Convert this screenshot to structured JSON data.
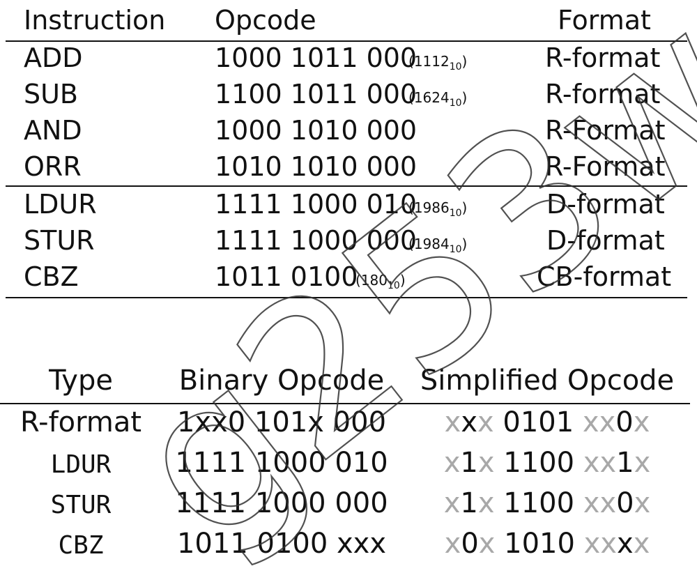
{
  "table1": {
    "headers": [
      "Instruction",
      "Opcode",
      "Format"
    ],
    "rows": [
      {
        "instruction": "ADD",
        "opcode": "1000 1011 000",
        "note": "1112",
        "note_sub": "10",
        "format": "R-format"
      },
      {
        "instruction": "SUB",
        "opcode": "1100 1011 000",
        "note": "1624",
        "note_sub": "10",
        "format": "R-format"
      },
      {
        "instruction": "AND",
        "opcode": "1000 1010 000",
        "note": "",
        "note_sub": "",
        "format": "R-Format"
      },
      {
        "instruction": "ORR",
        "opcode": "1010 1010 000",
        "note": "",
        "note_sub": "",
        "format": "R-Format"
      },
      {
        "instruction": "LDUR",
        "opcode": "1111 1000 010",
        "note": "1986",
        "note_sub": "10",
        "format": "D-format"
      },
      {
        "instruction": "STUR",
        "opcode": "1111 1000 000",
        "note": "1984",
        "note_sub": "10",
        "format": "D-format"
      },
      {
        "instruction": "CBZ",
        "opcode": "1011 0100",
        "note": "180",
        "note_sub": "10",
        "format": "CB-format"
      }
    ]
  },
  "table2": {
    "headers": [
      "Type",
      "Binary Opcode",
      "Simplified Opcode"
    ],
    "rows": [
      {
        "type": "R-format",
        "binary": "1xx0 101x 000",
        "simplified": [
          {
            "t": "x",
            "g": true
          },
          {
            "t": "x",
            "g": false
          },
          {
            "t": "x",
            "g": true
          },
          {
            "t": " 0101 ",
            "g": false
          },
          {
            "t": "xx",
            "g": true
          },
          {
            "t": "0",
            "g": false
          },
          {
            "t": "x",
            "g": true
          }
        ]
      },
      {
        "type": "LDUR",
        "binary": "1111 1000 010",
        "simplified": [
          {
            "t": "x",
            "g": true
          },
          {
            "t": "1",
            "g": false
          },
          {
            "t": "x",
            "g": true
          },
          {
            "t": " 1100 ",
            "g": false
          },
          {
            "t": "xx",
            "g": true
          },
          {
            "t": "1",
            "g": false
          },
          {
            "t": "x",
            "g": true
          }
        ]
      },
      {
        "type": "STUR",
        "binary": "1111 1000 000",
        "simplified": [
          {
            "t": "x",
            "g": true
          },
          {
            "t": "1",
            "g": false
          },
          {
            "t": "x",
            "g": true
          },
          {
            "t": " 1100 ",
            "g": false
          },
          {
            "t": "xx",
            "g": true
          },
          {
            "t": "0",
            "g": false
          },
          {
            "t": "x",
            "g": true
          }
        ]
      },
      {
        "type": "CBZ",
        "binary": "1011 0100 xxx",
        "simplified": [
          {
            "t": "x",
            "g": true
          },
          {
            "t": "0",
            "g": false
          },
          {
            "t": "x",
            "g": true
          },
          {
            "t": " 1010 ",
            "g": false
          },
          {
            "t": "xx",
            "g": true
          },
          {
            "t": "x",
            "g": false
          },
          {
            "t": "x",
            "g": true
          }
        ]
      }
    ]
  },
  "watermark_text": "g253wang",
  "colors": {
    "text": "#111111",
    "muted_x": "#a8a8a8",
    "rule": "#111111"
  }
}
